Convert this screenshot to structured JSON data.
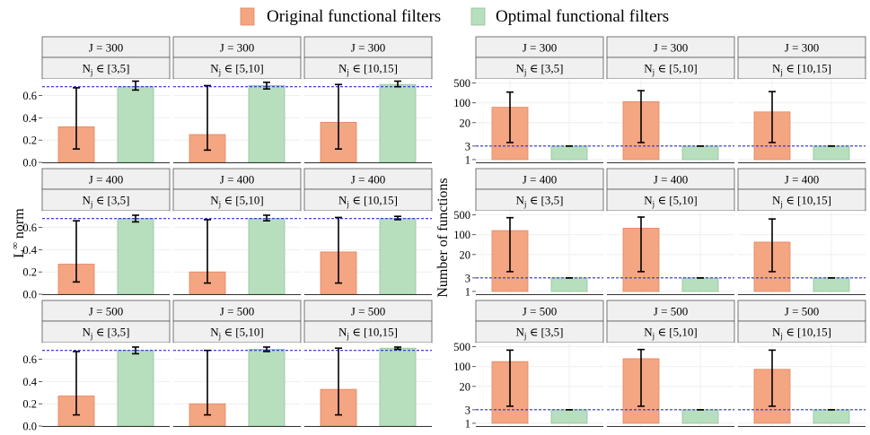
{
  "legend": {
    "items": [
      {
        "label": "Original functional filters",
        "color": "#f4a582",
        "stroke": "#e0875f"
      },
      {
        "label": "Optimal functional filters",
        "color": "#b8dfbd",
        "stroke": "#8ec496"
      }
    ]
  },
  "chart_data": {
    "type": "bar",
    "facet_rows": [
      {
        "label": "J = 300"
      },
      {
        "label": "J = 400"
      },
      {
        "label": "J = 500"
      }
    ],
    "facet_cols": [
      {
        "label_main": "N",
        "label_sub": "j",
        "label_rest": " ∈ [3,5]"
      },
      {
        "label_main": "N",
        "label_sub": "j",
        "label_rest": " ∈ [5,10]"
      },
      {
        "label_main": "N",
        "label_sub": "j",
        "label_rest": " ∈ [10,15]"
      }
    ],
    "left": {
      "ylabel_main": "L",
      "ylabel_sup": "∞",
      "ylabel_rest": " norm",
      "ylim": [
        0,
        0.75
      ],
      "yticks": [
        {
          "v": 0.0,
          "label": "0.0"
        },
        {
          "v": 0.2,
          "label": "0.2"
        },
        {
          "v": 0.4,
          "label": "0.4"
        },
        {
          "v": 0.6,
          "label": "0.6"
        }
      ],
      "reference_line": 0.68,
      "values": [
        [
          {
            "orig": [
              0.32,
              0.12,
              0.67
            ],
            "opt": [
              0.68,
              0.65,
              0.73
            ]
          },
          {
            "orig": [
              0.25,
              0.11,
              0.69
            ],
            "opt": [
              0.69,
              0.66,
              0.72
            ]
          },
          {
            "orig": [
              0.36,
              0.12,
              0.7
            ],
            "opt": [
              0.7,
              0.68,
              0.73
            ]
          }
        ],
        [
          {
            "orig": [
              0.27,
              0.11,
              0.66
            ],
            "opt": [
              0.68,
              0.65,
              0.71
            ]
          },
          {
            "orig": [
              0.2,
              0.1,
              0.67
            ],
            "opt": [
              0.68,
              0.66,
              0.71
            ]
          },
          {
            "orig": [
              0.38,
              0.1,
              0.69
            ],
            "opt": [
              0.68,
              0.67,
              0.7
            ]
          }
        ],
        [
          {
            "orig": [
              0.27,
              0.1,
              0.67
            ],
            "opt": [
              0.68,
              0.65,
              0.71
            ]
          },
          {
            "orig": [
              0.2,
              0.1,
              0.68
            ],
            "opt": [
              0.69,
              0.67,
              0.71
            ]
          },
          {
            "orig": [
              0.33,
              0.1,
              0.7
            ],
            "opt": [
              0.7,
              0.69,
              0.71
            ]
          }
        ]
      ]
    },
    "right": {
      "ylabel": "Number of functions",
      "scale": "log",
      "ylim": [
        0.8,
        700
      ],
      "yticks": [
        {
          "v": 1,
          "label": "1"
        },
        {
          "v": 3,
          "label": "3"
        },
        {
          "v": 20,
          "label": "20"
        },
        {
          "v": 100,
          "label": "100"
        },
        {
          "v": 500,
          "label": "500"
        }
      ],
      "reference_line": 3,
      "values": [
        [
          {
            "orig": [
              70,
              4,
              240
            ],
            "opt": [
              3,
              3,
              3
            ]
          },
          {
            "orig": [
              110,
              4,
              270
            ],
            "opt": [
              3,
              3,
              3
            ]
          },
          {
            "orig": [
              48,
              4,
              250
            ],
            "opt": [
              3,
              3,
              3
            ]
          }
        ],
        [
          {
            "orig": [
              140,
              5,
              400
            ],
            "opt": [
              3,
              3,
              3
            ]
          },
          {
            "orig": [
              170,
              5,
              420
            ],
            "opt": [
              3,
              3,
              3
            ]
          },
          {
            "orig": [
              55,
              5,
              360
            ],
            "opt": [
              3,
              3,
              3
            ]
          }
        ],
        [
          {
            "orig": [
              150,
              4,
              380
            ],
            "opt": [
              3,
              3,
              3
            ]
          },
          {
            "orig": [
              190,
              4,
              400
            ],
            "opt": [
              3,
              3,
              3
            ]
          },
          {
            "orig": [
              80,
              4,
              380
            ],
            "opt": [
              3,
              3,
              3
            ]
          }
        ]
      ]
    }
  }
}
